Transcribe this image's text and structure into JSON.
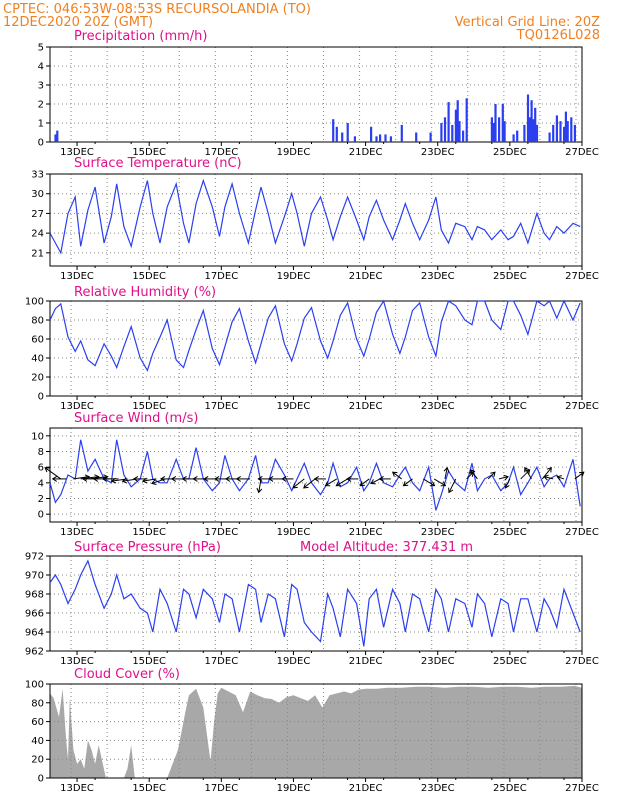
{
  "header": {
    "line1_left": "CPTEC:   046:53W-08:53S   RECURSOLANDIA (TO)",
    "line2_left": "12DEC2020 20Z (GMT)",
    "line2_right": "Vertical Grid Line: 20Z",
    "line3_right": "TQ0126L028"
  },
  "colors": {
    "header": "#f08020",
    "panel_title": "#e0108a",
    "series": "#2b3ff0",
    "cloud": "#a8a8a8",
    "grid": "#888888"
  },
  "chart_data": [
    {
      "id": "precipitation",
      "type": "bar",
      "title": "Precipitation (mm/h)",
      "ylim": [
        0,
        5
      ],
      "yticks": [
        0,
        1,
        2,
        3,
        4,
        5
      ],
      "xlim_days": [
        12.25,
        27.0
      ],
      "xtick_labels": [
        "13DEC",
        "15DEC",
        "17DEC",
        "19DEC",
        "21DEC",
        "23DEC",
        "25DEC",
        "27DEC"
      ],
      "color": "#2b3ff0",
      "x": [
        12.4,
        12.45,
        20.1,
        20.2,
        20.35,
        20.5,
        20.7,
        21.15,
        21.3,
        21.4,
        21.55,
        21.7,
        22.0,
        22.4,
        22.8,
        23.1,
        23.2,
        23.3,
        23.4,
        23.5,
        23.55,
        23.6,
        23.7,
        23.8,
        24.5,
        24.55,
        24.6,
        24.7,
        24.8,
        24.85,
        25.1,
        25.2,
        25.4,
        25.5,
        25.55,
        25.6,
        25.65,
        25.7,
        25.75,
        26.1,
        26.2,
        26.3,
        26.4,
        26.5,
        26.55,
        26.6,
        26.7,
        26.8
      ],
      "values": [
        0.4,
        0.6,
        1.2,
        0.8,
        0.5,
        1.0,
        0.3,
        0.8,
        0.3,
        0.4,
        0.4,
        0.3,
        0.9,
        0.5,
        0.5,
        1.0,
        1.3,
        2.1,
        0.9,
        1.7,
        2.2,
        1.1,
        0.6,
        2.3,
        1.3,
        1.0,
        2.0,
        1.3,
        2.0,
        1.1,
        0.4,
        0.6,
        0.9,
        2.5,
        1.3,
        2.2,
        1.2,
        1.8,
        0.9,
        0.5,
        0.9,
        1.4,
        1.1,
        0.8,
        1.6,
        1.1,
        1.3,
        0.9
      ]
    },
    {
      "id": "temperature",
      "type": "line",
      "title": "Surface Temperature (nC)",
      "ylim": [
        19,
        33
      ],
      "yticks": [
        21,
        24,
        27,
        30,
        33
      ],
      "xlim_days": [
        12.25,
        27.0
      ],
      "xtick_labels": [
        "13DEC",
        "15DEC",
        "17DEC",
        "19DEC",
        "21DEC",
        "23DEC",
        "25DEC",
        "27DEC"
      ],
      "color": "#2b3ff0",
      "x": [
        12.25,
        12.4,
        12.55,
        12.75,
        12.95,
        13.1,
        13.3,
        13.5,
        13.75,
        13.95,
        14.1,
        14.3,
        14.5,
        14.75,
        14.95,
        15.1,
        15.3,
        15.5,
        15.75,
        15.95,
        16.1,
        16.3,
        16.5,
        16.75,
        16.95,
        17.1,
        17.3,
        17.5,
        17.75,
        17.95,
        18.1,
        18.3,
        18.5,
        18.75,
        18.95,
        19.1,
        19.3,
        19.5,
        19.75,
        19.95,
        20.1,
        20.3,
        20.5,
        20.75,
        20.95,
        21.1,
        21.3,
        21.5,
        21.75,
        21.95,
        22.1,
        22.3,
        22.5,
        22.75,
        22.95,
        23.1,
        23.3,
        23.5,
        23.75,
        23.95,
        24.1,
        24.3,
        24.5,
        24.75,
        24.95,
        25.1,
        25.3,
        25.5,
        25.75,
        25.95,
        26.1,
        26.3,
        26.5,
        26.75,
        26.95
      ],
      "values": [
        24,
        22.5,
        21,
        27,
        29.5,
        22,
        27.5,
        31,
        22.5,
        26.5,
        31.5,
        25,
        22,
        28,
        32,
        27,
        22.5,
        28,
        31.5,
        25.5,
        22.5,
        28.5,
        32,
        28,
        23.5,
        28,
        31.5,
        27,
        22.5,
        27.5,
        31,
        27,
        22.5,
        26.5,
        30,
        27,
        22,
        27,
        29.5,
        26,
        23,
        26.5,
        29.5,
        26,
        23,
        26.5,
        29,
        26,
        23,
        26,
        28.5,
        25.5,
        23,
        26,
        29.5,
        24.5,
        22.5,
        25.5,
        25,
        23,
        25,
        24.5,
        23,
        24.5,
        23,
        23.5,
        25.5,
        22.5,
        27,
        24,
        23,
        25,
        24,
        25.5,
        25
      ]
    },
    {
      "id": "humidity",
      "type": "line",
      "title": "Relative Humidity (%)",
      "ylim": [
        0,
        100
      ],
      "yticks": [
        0,
        20,
        40,
        60,
        80,
        100
      ],
      "xlim_days": [
        12.25,
        27.0
      ],
      "xtick_labels": [
        "13DEC",
        "15DEC",
        "17DEC",
        "19DEC",
        "21DEC",
        "23DEC",
        "25DEC",
        "27DEC"
      ],
      "color": "#2b3ff0",
      "x": [
        12.25,
        12.4,
        12.55,
        12.75,
        12.95,
        13.1,
        13.3,
        13.5,
        13.75,
        13.95,
        14.1,
        14.3,
        14.5,
        14.75,
        14.95,
        15.1,
        15.3,
        15.5,
        15.75,
        15.95,
        16.1,
        16.3,
        16.5,
        16.75,
        16.95,
        17.1,
        17.3,
        17.5,
        17.75,
        17.95,
        18.1,
        18.3,
        18.5,
        18.75,
        18.95,
        19.1,
        19.3,
        19.5,
        19.75,
        19.95,
        20.1,
        20.3,
        20.5,
        20.75,
        20.95,
        21.1,
        21.3,
        21.5,
        21.75,
        21.95,
        22.1,
        22.3,
        22.5,
        22.75,
        22.95,
        23.1,
        23.3,
        23.5,
        23.75,
        23.95,
        24.1,
        24.3,
        24.5,
        24.75,
        24.95,
        25.1,
        25.3,
        25.5,
        25.75,
        25.95,
        26.1,
        26.3,
        26.5,
        26.75,
        26.95
      ],
      "values": [
        80,
        92,
        97,
        62,
        47,
        58,
        38,
        32,
        55,
        42,
        30,
        52,
        73,
        40,
        27,
        45,
        62,
        80,
        38,
        30,
        48,
        70,
        90,
        50,
        33,
        52,
        78,
        92,
        58,
        35,
        55,
        82,
        95,
        55,
        37,
        55,
        82,
        93,
        58,
        40,
        58,
        85,
        98,
        60,
        42,
        60,
        88,
        100,
        65,
        45,
        62,
        90,
        98,
        62,
        42,
        78,
        100,
        95,
        80,
        75,
        100,
        100,
        80,
        70,
        100,
        100,
        85,
        65,
        100,
        95,
        100,
        82,
        100,
        80,
        98
      ]
    },
    {
      "id": "wind",
      "type": "line",
      "title": "Surface Wind (m/s)",
      "ylim": [
        -1,
        11
      ],
      "yticks": [
        0,
        2,
        4,
        6,
        8,
        10
      ],
      "xlim_days": [
        12.25,
        27.0
      ],
      "xtick_labels": [
        "13DEC",
        "15DEC",
        "17DEC",
        "19DEC",
        "21DEC",
        "23DEC",
        "25DEC",
        "27DEC"
      ],
      "color": "#2b3ff0",
      "x": [
        12.25,
        12.4,
        12.55,
        12.75,
        12.95,
        13.1,
        13.3,
        13.5,
        13.75,
        13.95,
        14.1,
        14.3,
        14.5,
        14.75,
        14.95,
        15.1,
        15.3,
        15.5,
        15.75,
        15.95,
        16.1,
        16.3,
        16.5,
        16.75,
        16.95,
        17.1,
        17.3,
        17.5,
        17.75,
        17.95,
        18.1,
        18.3,
        18.5,
        18.75,
        18.95,
        19.1,
        19.3,
        19.5,
        19.75,
        19.95,
        20.1,
        20.3,
        20.5,
        20.75,
        20.95,
        21.1,
        21.3,
        21.5,
        21.75,
        21.95,
        22.1,
        22.3,
        22.5,
        22.75,
        22.95,
        23.1,
        23.3,
        23.5,
        23.75,
        23.95,
        24.1,
        24.3,
        24.5,
        24.75,
        24.95,
        25.1,
        25.3,
        25.5,
        25.75,
        25.95,
        26.1,
        26.3,
        26.5,
        26.75,
        26.95
      ],
      "values": [
        4,
        1.5,
        2.5,
        5,
        4.5,
        9.5,
        5.5,
        7,
        4.5,
        4,
        9.5,
        5,
        3.5,
        4.5,
        8,
        4.5,
        4,
        4,
        7,
        4.5,
        4.5,
        8.5,
        4.5,
        3,
        4,
        7.5,
        4.5,
        3,
        4.5,
        7.5,
        4,
        4,
        7,
        5,
        3,
        4.5,
        6.5,
        4,
        2.5,
        4,
        6.5,
        3.5,
        4,
        6,
        3,
        4,
        6.5,
        4,
        3.5,
        5,
        6,
        4,
        3,
        6,
        0.5,
        2.5,
        5.5,
        4,
        3,
        6.5,
        3,
        4.5,
        5,
        3,
        4,
        6,
        2.5,
        4,
        6,
        3.5,
        4.5,
        5,
        3.5,
        7,
        1
      ]
    },
    {
      "id": "pressure",
      "type": "line",
      "title": "Surface Pressure (hPa)",
      "annotation": "Model Altitude: 377.431  m",
      "ylim": [
        962,
        972
      ],
      "yticks": [
        962,
        964,
        966,
        968,
        970,
        972
      ],
      "xlim_days": [
        12.25,
        27.0
      ],
      "xtick_labels": [
        "13DEC",
        "15DEC",
        "17DEC",
        "19DEC",
        "21DEC",
        "23DEC",
        "25DEC",
        "27DEC"
      ],
      "color": "#2b3ff0",
      "x": [
        12.25,
        12.4,
        12.55,
        12.75,
        12.95,
        13.1,
        13.3,
        13.5,
        13.75,
        13.95,
        14.1,
        14.3,
        14.5,
        14.75,
        14.95,
        15.1,
        15.3,
        15.5,
        15.75,
        15.95,
        16.1,
        16.3,
        16.5,
        16.75,
        16.95,
        17.1,
        17.3,
        17.5,
        17.75,
        17.95,
        18.1,
        18.3,
        18.5,
        18.75,
        18.95,
        19.1,
        19.3,
        19.5,
        19.75,
        19.95,
        20.1,
        20.3,
        20.5,
        20.75,
        20.95,
        21.1,
        21.3,
        21.5,
        21.75,
        21.95,
        22.1,
        22.3,
        22.5,
        22.75,
        22.95,
        23.1,
        23.3,
        23.5,
        23.75,
        23.95,
        24.1,
        24.3,
        24.5,
        24.75,
        24.95,
        25.1,
        25.3,
        25.5,
        25.75,
        25.95,
        26.1,
        26.3,
        26.5,
        26.75,
        26.95
      ],
      "values": [
        969.2,
        970.0,
        969.0,
        967.0,
        968.5,
        970.0,
        971.5,
        969.0,
        966.5,
        968.0,
        970.0,
        967.5,
        968.0,
        966.5,
        966.0,
        964.0,
        968.5,
        967.0,
        964.0,
        968.5,
        968.0,
        965.5,
        968.5,
        967.5,
        965.0,
        968.0,
        967.5,
        964.0,
        969.0,
        968.5,
        965.0,
        968.0,
        967.5,
        963.5,
        969.0,
        968.5,
        965.0,
        964.0,
        963.0,
        968.0,
        966.5,
        963.5,
        968.5,
        967.0,
        962.5,
        967.5,
        968.5,
        964.5,
        968.5,
        967.0,
        964.0,
        968.0,
        967.5,
        964.0,
        968.5,
        967.5,
        964.0,
        967.5,
        967.0,
        964.5,
        968.0,
        967.0,
        963.5,
        967.5,
        967.0,
        964.0,
        967.5,
        967.5,
        964.0,
        967.5,
        966.5,
        964.5,
        968.5,
        966.0,
        964.0
      ]
    },
    {
      "id": "cloud",
      "type": "area",
      "title": "Cloud Cover (%)",
      "ylim": [
        0,
        100
      ],
      "yticks": [
        0,
        20,
        40,
        60,
        80,
        100
      ],
      "xlim_days": [
        12.25,
        27.0
      ],
      "xtick_labels": [
        "13DEC",
        "15DEC",
        "17DEC",
        "19DEC",
        "21DEC",
        "23DEC",
        "25DEC",
        "27DEC"
      ],
      "color": "#a8a8a8",
      "x": [
        12.25,
        12.35,
        12.5,
        12.6,
        12.7,
        12.75,
        12.8,
        12.9,
        13.0,
        13.1,
        13.2,
        13.3,
        13.4,
        13.5,
        13.6,
        13.8,
        14.0,
        14.2,
        14.3,
        14.4,
        14.5,
        14.6,
        14.8,
        15.0,
        15.2,
        15.3,
        15.4,
        15.5,
        15.6,
        15.8,
        16.0,
        16.1,
        16.3,
        16.5,
        16.7,
        16.8,
        16.9,
        17.0,
        17.2,
        17.4,
        17.6,
        17.8,
        18.0,
        18.2,
        18.4,
        18.6,
        18.8,
        19.0,
        19.2,
        19.4,
        19.6,
        19.8,
        20.0,
        20.2,
        20.4,
        20.6,
        20.8,
        21.0,
        21.3,
        21.6,
        22.0,
        22.4,
        22.8,
        23.2,
        23.6,
        24.0,
        24.4,
        24.8,
        25.2,
        25.6,
        26.0,
        26.4,
        26.8,
        27.0
      ],
      "values": [
        90,
        85,
        65,
        95,
        40,
        20,
        85,
        30,
        15,
        20,
        10,
        40,
        30,
        15,
        35,
        0,
        0,
        0,
        0,
        10,
        35,
        0,
        0,
        0,
        0,
        0,
        0,
        0,
        10,
        30,
        70,
        88,
        95,
        75,
        18,
        60,
        90,
        96,
        92,
        88,
        70,
        92,
        88,
        85,
        84,
        80,
        86,
        88,
        85,
        82,
        88,
        75,
        88,
        90,
        92,
        90,
        94,
        95,
        95,
        96,
        96,
        97,
        97,
        96,
        97,
        97,
        96,
        97,
        97,
        96,
        97,
        97,
        98,
        96
      ]
    }
  ],
  "wind_arrows": {
    "y_value": 4.5,
    "x": [
      12.55,
      12.7,
      12.9,
      13.1,
      13.35,
      13.6,
      13.9,
      14.15,
      14.4,
      14.7,
      14.95,
      15.2,
      15.45,
      15.7,
      16.0,
      16.3,
      16.6,
      16.9,
      17.2,
      17.5,
      17.8,
      18.1,
      18.4,
      18.7,
      19.0,
      19.3,
      19.6,
      19.9,
      20.2,
      20.5,
      20.8,
      21.1,
      21.4,
      21.7,
      22.0,
      22.3,
      22.6,
      22.9,
      23.2,
      23.5,
      23.8,
      24.1,
      24.4,
      24.7,
      25.0,
      25.3,
      25.6,
      25.9,
      26.2,
      26.5,
      26.8
    ],
    "u": [
      -3.5,
      -3,
      3.5,
      4,
      4,
      -3.5,
      -3.5,
      -3.5,
      -3.5,
      -3.5,
      -3,
      -3,
      -3,
      -3,
      -3,
      -3,
      -3,
      -3,
      -3,
      -3,
      -3,
      -0.5,
      -3,
      -3,
      -2.5,
      -2.5,
      -2.5,
      -2.5,
      -2.5,
      -2.5,
      -2.5,
      -2,
      -2,
      -2.5,
      -2,
      -2,
      2.5,
      2.5,
      0.5,
      -1.5,
      1.5,
      -1.5,
      1.5,
      2,
      -1,
      2,
      -1.5,
      2,
      -2,
      -1.5,
      2
    ],
    "v": [
      2.5,
      0,
      0.5,
      0.5,
      0.5,
      0,
      0,
      0,
      -0.5,
      -0.5,
      0,
      -0.5,
      -1,
      0,
      0,
      0,
      0,
      0,
      0,
      0,
      0,
      -3,
      0,
      0,
      0,
      -2,
      -2,
      0,
      -1.5,
      -1.5,
      0,
      -1.5,
      -1,
      0,
      1.5,
      -1.5,
      -1.5,
      -1.5,
      2.5,
      -3,
      1.5,
      2,
      1.5,
      0.5,
      -2,
      2,
      2.5,
      2.5,
      0.5,
      0.5,
      1.5
    ]
  },
  "vertical_grid_label": "Vertical Grid Line: 20Z"
}
